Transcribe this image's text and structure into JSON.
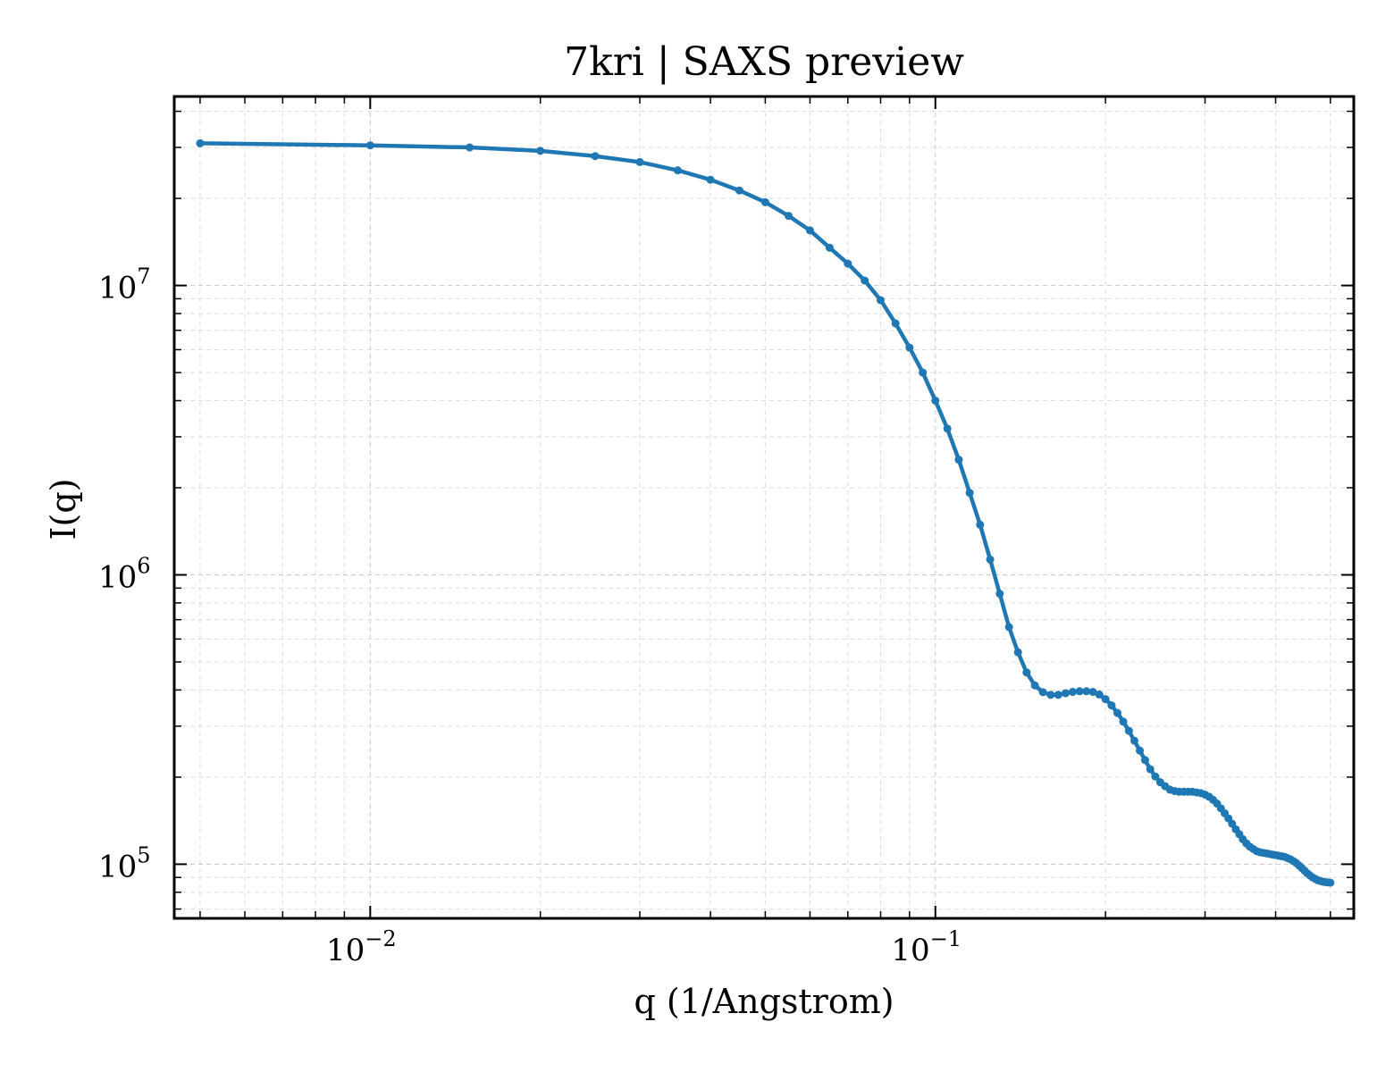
{
  "chart_data": {
    "type": "line",
    "title": "7kri | SAXS preview",
    "xlabel": "q (1/Angstrom)",
    "ylabel": "I(q)",
    "xscale": "log",
    "yscale": "log",
    "xlim": [
      0.0045,
      0.55
    ],
    "ylim": [
      65000,
      45000000
    ],
    "grid": true,
    "legend": "none",
    "x_ticks": [
      {
        "base": "10",
        "exp": "−2",
        "value": 0.01
      },
      {
        "base": "10",
        "exp": "−1",
        "value": 0.1
      }
    ],
    "y_ticks": [
      {
        "base": "10",
        "exp": "5",
        "value": 100000
      },
      {
        "base": "10",
        "exp": "6",
        "value": 1000000
      },
      {
        "base": "10",
        "exp": "7",
        "value": 10000000
      }
    ],
    "colors": {
      "line": "#1f77b4"
    },
    "series": [
      {
        "x": [
          0.005,
          0.01,
          0.015,
          0.02,
          0.025,
          0.03,
          0.035,
          0.04,
          0.045,
          0.05,
          0.055,
          0.06,
          0.065,
          0.07,
          0.075,
          0.08,
          0.085,
          0.09,
          0.095,
          0.1,
          0.105,
          0.11,
          0.115,
          0.12,
          0.125,
          0.13,
          0.135,
          0.14,
          0.145,
          0.15,
          0.155,
          0.16,
          0.165,
          0.17,
          0.175,
          0.18,
          0.185,
          0.19,
          0.195,
          0.2,
          0.205,
          0.21,
          0.215,
          0.22,
          0.225,
          0.23,
          0.235,
          0.24,
          0.245,
          0.25,
          0.255,
          0.26,
          0.265,
          0.27,
          0.275,
          0.28,
          0.285,
          0.29,
          0.295,
          0.3,
          0.305,
          0.31,
          0.315,
          0.32,
          0.325,
          0.33,
          0.335,
          0.34,
          0.345,
          0.35,
          0.355,
          0.36,
          0.365,
          0.37,
          0.375,
          0.38,
          0.385,
          0.39,
          0.395,
          0.4,
          0.405,
          0.41,
          0.415,
          0.42,
          0.425,
          0.43,
          0.435,
          0.44,
          0.445,
          0.45,
          0.455,
          0.46,
          0.465,
          0.47,
          0.475,
          0.48,
          0.485,
          0.49,
          0.495,
          0.5
        ],
        "y": [
          31000000,
          30500000,
          30000000,
          29200000,
          28000000,
          26700000,
          25000000,
          23200000,
          21300000,
          19400000,
          17400000,
          15500000,
          13500000,
          11900000,
          10400000,
          8900000,
          7400000,
          6100000,
          5000000,
          4000000,
          3200000,
          2500000,
          1920000,
          1490000,
          1130000,
          860000,
          660000,
          540000,
          460000,
          415000,
          393000,
          385000,
          385000,
          390000,
          394000,
          396000,
          396000,
          394000,
          386000,
          372000,
          354000,
          333000,
          311000,
          289000,
          267000,
          247000,
          229000,
          213000,
          201000,
          192000,
          186000,
          181000,
          179000,
          178000,
          178000,
          178000,
          178000,
          177000,
          176000,
          174000,
          171000,
          167000,
          162000,
          156000,
          150000,
          144000,
          138000,
          132000,
          127000,
          122000,
          118000,
          115000,
          113000,
          111000,
          110000,
          109500,
          109000,
          108500,
          108000,
          107500,
          107000,
          106500,
          106000,
          105000,
          104000,
          102500,
          101000,
          99000,
          97000,
          95000,
          93000,
          91500,
          90000,
          89000,
          88000,
          87500,
          87000,
          86700,
          86500,
          86300
        ]
      }
    ]
  }
}
